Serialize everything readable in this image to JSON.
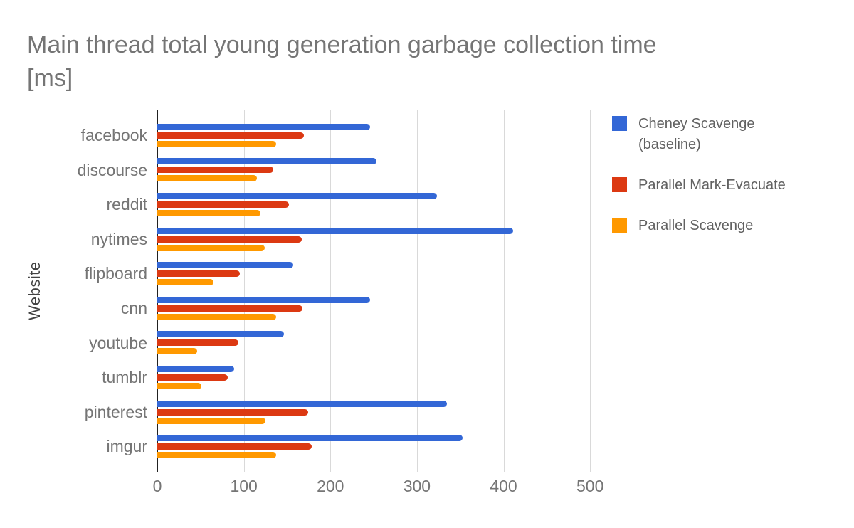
{
  "ui": {
    "title_line1": "Main thread total young generation garbage collection time",
    "title_line2": "[ms]"
  },
  "chart_data": {
    "type": "bar",
    "orientation": "horizontal",
    "title": "Main thread total young generation garbage collection time [ms]",
    "xlabel": "",
    "ylabel": "Website",
    "categories": [
      "facebook",
      "discourse",
      "reddit",
      "nytimes",
      "flipboard",
      "cnn",
      "youtube",
      "tumblr",
      "pinterest",
      "imgur"
    ],
    "series": [
      {
        "name": "Cheney Scavenge (baseline)",
        "color": "#3367D6",
        "values": [
          246,
          253,
          323,
          411,
          157,
          246,
          146,
          89,
          335,
          353
        ]
      },
      {
        "name": "Parallel Mark-Evacuate",
        "color": "#DC3912",
        "values": [
          169,
          134,
          152,
          167,
          95,
          168,
          94,
          81,
          174,
          178
        ]
      },
      {
        "name": "Parallel Scavenge",
        "color": "#FF9900",
        "values": [
          137,
          115,
          119,
          124,
          65,
          137,
          46,
          51,
          125,
          137
        ]
      }
    ],
    "x_ticks": [
      0,
      100,
      200,
      300,
      400,
      500
    ],
    "xlim": [
      0,
      550
    ],
    "grid": true,
    "legend_position": "right",
    "colors": {
      "title_text": "#757575",
      "axis_labels": "#757575",
      "y_axis_title": "#424242",
      "gridline": "#d9d9d9",
      "axis_line": "#212121",
      "legend_text": "#616161"
    }
  }
}
